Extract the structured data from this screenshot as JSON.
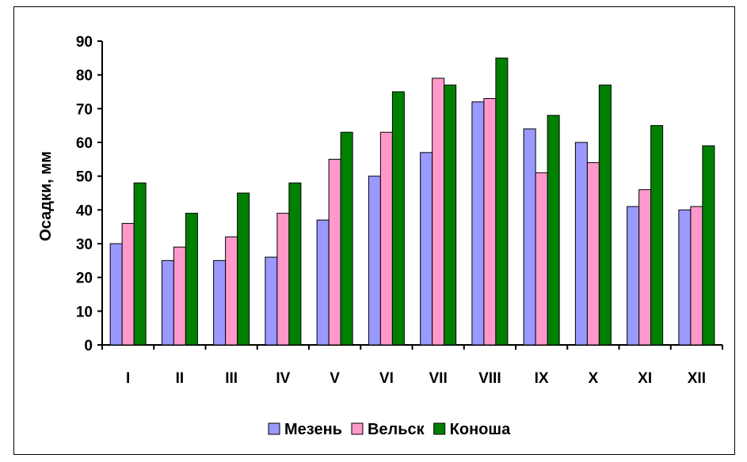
{
  "chart_data": {
    "type": "bar",
    "ylabel": "Осадки, мм",
    "ylim": [
      0,
      90
    ],
    "yticks": [
      0,
      10,
      20,
      30,
      40,
      50,
      60,
      70,
      80,
      90
    ],
    "categories": [
      "I",
      "II",
      "III",
      "IV",
      "V",
      "VI",
      "VII",
      "VIII",
      "IX",
      "X",
      "XI",
      "XII"
    ],
    "series": [
      {
        "name": "Мезень",
        "color": "#9999ff",
        "values": [
          30,
          25,
          25,
          26,
          37,
          50,
          57,
          72,
          64,
          60,
          41,
          40
        ]
      },
      {
        "name": "Вельск",
        "color": "#ff99cc",
        "values": [
          36,
          29,
          32,
          39,
          55,
          63,
          79,
          73,
          51,
          54,
          46,
          41
        ]
      },
      {
        "name": "Коноша",
        "color": "#008000",
        "values": [
          48,
          39,
          45,
          48,
          63,
          75,
          77,
          85,
          68,
          77,
          65,
          59
        ]
      }
    ],
    "grid": false,
    "legend": "bottom"
  }
}
